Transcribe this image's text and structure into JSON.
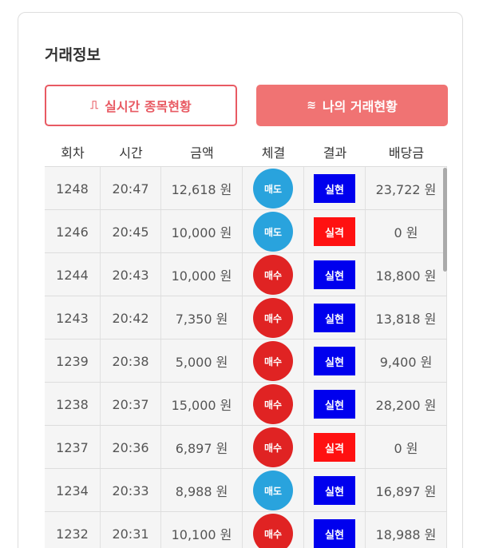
{
  "header": {
    "title": "거래정보"
  },
  "tabs": [
    {
      "label": "실시간 종목현황"
    },
    {
      "label": "나의 거래현황"
    }
  ],
  "table": {
    "columns": [
      "회차",
      "시간",
      "금액",
      "체결",
      "결과",
      "배당금"
    ],
    "rows": [
      [
        "1248",
        "20:47",
        "12,618 원",
        "매도",
        "실현",
        "23,722 원"
      ],
      [
        "1246",
        "20:45",
        "10,000 원",
        "매도",
        "실격",
        "0 원"
      ],
      [
        "1244",
        "20:43",
        "10,000 원",
        "매수",
        "실현",
        "18,800 원"
      ],
      [
        "1243",
        "20:42",
        "7,350 원",
        "매수",
        "실현",
        "13,818 원"
      ],
      [
        "1239",
        "20:38",
        "5,000 원",
        "매수",
        "실현",
        "9,400 원"
      ],
      [
        "1238",
        "20:37",
        "15,000 원",
        "매수",
        "실현",
        "28,200 원"
      ],
      [
        "1237",
        "20:36",
        "6,897 원",
        "매수",
        "실격",
        "0 원"
      ],
      [
        "1234",
        "20:33",
        "8,988 원",
        "매도",
        "실현",
        "16,897 원"
      ],
      [
        "1232",
        "20:31",
        "10,100 원",
        "매수",
        "실현",
        "18,988 원"
      ]
    ]
  }
}
